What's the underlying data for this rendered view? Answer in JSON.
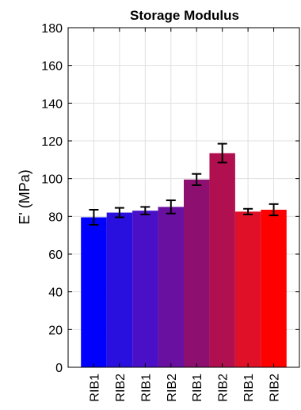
{
  "chart_data": {
    "type": "bar",
    "title": "Storage Modulus",
    "ylabel": "E' (MPa)",
    "xlabel": "",
    "ylim": [
      0,
      180
    ],
    "yticks": [
      0,
      20,
      40,
      60,
      80,
      100,
      120,
      140,
      160,
      180
    ],
    "grid": true,
    "categories": [
      "RIB1",
      "RIB2",
      "RIB1",
      "RIB2",
      "RIB1",
      "RIB2",
      "RIB1",
      "RIB2"
    ],
    "values": [
      79.5,
      82,
      83,
      85,
      99.5,
      113.5,
      82.5,
      83.5
    ],
    "errors": [
      4,
      2.5,
      2,
      3.5,
      3,
      5,
      1.5,
      3
    ],
    "colors": [
      "#0000ff",
      "#2a10df",
      "#4a10c8",
      "#6a10a0",
      "#8d1070",
      "#b0104f",
      "#e01028",
      "#ff0000"
    ]
  }
}
